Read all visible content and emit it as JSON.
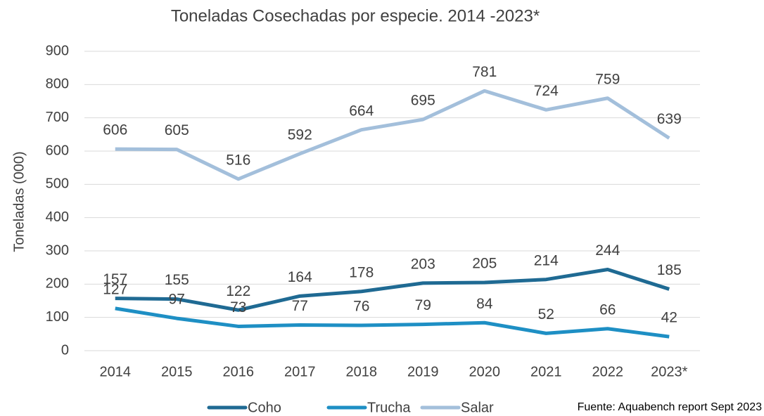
{
  "chart_data": {
    "type": "line",
    "title": "Toneladas Cosechadas por especie. 2014 -2023*",
    "y_label": "Toneladas (000)",
    "source": "Fuente: Aquabench report Sept 2023",
    "categories": [
      "2014",
      "2015",
      "2016",
      "2017",
      "2018",
      "2019",
      "2020",
      "2021",
      "2022",
      "2023*"
    ],
    "series": [
      {
        "name": "Coho",
        "color": "#1f6a93",
        "values": [
          157,
          155,
          122,
          164,
          178,
          203,
          205,
          214,
          244,
          185
        ]
      },
      {
        "name": "Trucha",
        "color": "#1e8fc4",
        "values": [
          127,
          97,
          73,
          77,
          76,
          79,
          84,
          52,
          66,
          42
        ]
      },
      {
        "name": "Salar",
        "color": "#a3bfdb",
        "values": [
          606,
          605,
          516,
          592,
          664,
          695,
          781,
          724,
          759,
          639
        ]
      }
    ],
    "ylim": [
      0,
      900
    ],
    "yticks": [
      0,
      100,
      200,
      300,
      400,
      500,
      600,
      700,
      800,
      900
    ],
    "grid": true,
    "legend": "bottom"
  }
}
